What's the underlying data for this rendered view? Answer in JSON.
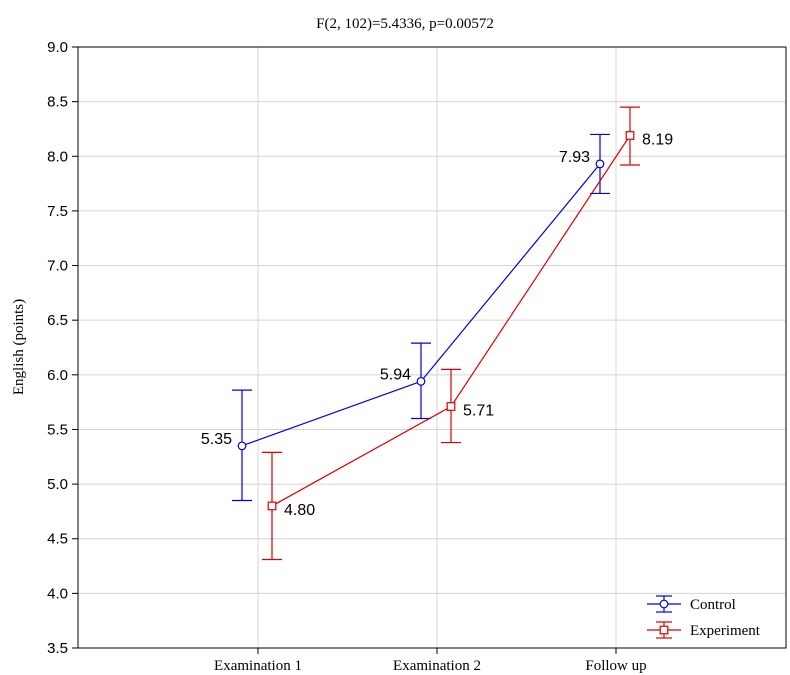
{
  "chart_data": {
    "type": "line",
    "title": "F(2, 102)=5.4336, p=0.00572",
    "xlabel": "",
    "ylabel": "English (points)",
    "categories": [
      "Examination 1",
      "Examination 2",
      "Follow up"
    ],
    "ylim": [
      3.5,
      9.0
    ],
    "yticks": [
      "3.5",
      "4.0",
      "4.5",
      "5.0",
      "5.5",
      "6.0",
      "6.5",
      "7.0",
      "7.5",
      "8.0",
      "8.5",
      "9.0"
    ],
    "grid": true,
    "legend_position": "bottom-right",
    "series": [
      {
        "name": "Control",
        "color": "#0000dd",
        "marker": "circle",
        "values": [
          5.35,
          5.94,
          7.93
        ],
        "labels": [
          "5.35",
          "5.94",
          "7.93"
        ],
        "error_low": [
          4.85,
          5.6,
          7.66
        ],
        "error_high": [
          5.86,
          6.29,
          8.2
        ]
      },
      {
        "name": "Experiment",
        "color": "#dd0000",
        "marker": "square",
        "values": [
          4.8,
          5.71,
          8.19
        ],
        "labels": [
          "4.80",
          "5.71",
          "8.19"
        ],
        "error_low": [
          4.31,
          5.38,
          7.92
        ],
        "error_high": [
          5.29,
          6.05,
          8.45
        ]
      }
    ]
  }
}
